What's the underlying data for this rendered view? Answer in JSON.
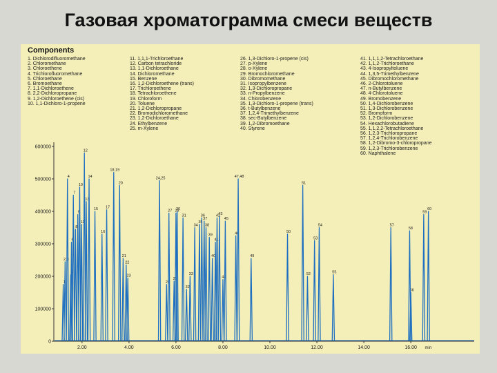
{
  "slide": {
    "title": "Газовая хроматограмма смеси веществ"
  },
  "components": {
    "heading": "Components",
    "columns": [
      [
        "1. Dichlorodifluoromethane",
        "2. Chloromethane",
        "3. Chloroethene",
        "4. Trichlorofluoromethane",
        "5. Chloroethane",
        "6. Bromoethane",
        "7. 1,1-Dichloroethene",
        "8. 2,2-Dichloropropane",
        "9. 1,2-Dichloroethene (cis)",
        "10. 1,1-Dichloro-1-propene"
      ],
      [
        "11. 1,1,1-Trichloroethane",
        "12. Carbon tetrachloride",
        "13. 1,1-Dichloroethane",
        "14. Dichloromethane",
        "15. Benzene",
        "16. 1,2-Dichloroethene (trans)",
        "17. Trichloroethene",
        "18. Tetrachloroethene",
        "19. Chloroform",
        "20. Toluene",
        "21. 1,2-Dichloropropane",
        "22. Bromodichloromethane",
        "23. 1,2-Dichloroethane",
        "24. Ethylbenzene",
        "25. m-Xylene"
      ],
      [
        "26. 1,3-Dichloro-1-propene (cis)",
        "27. p-Xylene",
        "28. o-Xylene",
        "29. Bromochloromethane",
        "30. Dibromomethane",
        "31. Isopropylbenzene",
        "32. 1,3-Dichloropropane",
        "33. n-Propylbenzene",
        "34. Chlorobenzene",
        "35. 1,3-Dichloro-1-propene (trans)",
        "36. t-Butylbenzene",
        "37. 1,2,4-Trimethylbenzene",
        "38. sec-Butylbenzene",
        "39. 1,2-Dibromoethane",
        "40. Styrene"
      ],
      [
        "41. 1,1,1,2-Tetrachloroethane",
        "42. 1,1,2-Trichloroethane",
        "43. 4-Isopropyltoluene",
        "44. 1,3,5-Trimethylbenzene",
        "45. Dibromochloromethane",
        "46. 2-Chlorotoluene",
        "47. n-Butylbenzene",
        "48. 4-Chlorotoluene",
        "49. Bromobenzene",
        "50. 1,4-Dichlorobenzene",
        "51. 1,3-Dichlorobenzene",
        "52. Bromoform",
        "53. 1,2-Dichlorobenzene",
        "54. Hexachlorobutadiene",
        "55. 1,1,2,2-Tetrachloroethane",
        "56. 1,2,3-Trichloropropane",
        "57. 1,2,4-Trichlorobenzene",
        "58. 1,2-Dibromo-3-chloropropane",
        "59. 1,2,3-Trichlorobenzene",
        "60. Naphthalene"
      ]
    ]
  },
  "chart_data": {
    "type": "line",
    "title": "",
    "xlabel": "min",
    "ylabel": "",
    "xlim": [
      0.8,
      18.7
    ],
    "ylim": [
      0,
      600000
    ],
    "x_ticks": [
      2.0,
      4.0,
      6.0,
      8.0,
      10.0,
      12.0,
      14.0,
      16.0
    ],
    "x_tick_labels": [
      "2.00",
      "4.00",
      "6.00",
      "8.00",
      "10.00",
      "12.00",
      "14.00",
      "16.00"
    ],
    "y_ticks": [
      0,
      100000,
      200000,
      300000,
      400000,
      500000,
      600000
    ],
    "y_tick_labels": [
      "0",
      "100000",
      "200000",
      "300000",
      "400000",
      "500000",
      "600000"
    ],
    "grid": false,
    "line_color": "#1e6fc0",
    "series": [
      {
        "peaks": [
          {
            "label": "1",
            "rt": 1.2,
            "height": 175000
          },
          {
            "label": "2,3",
            "rt": 1.28,
            "height": 245000
          },
          {
            "label": "4",
            "rt": 1.38,
            "height": 500000
          },
          {
            "label": "5",
            "rt": 1.52,
            "height": 205000
          },
          {
            "label": "6",
            "rt": 1.55,
            "height": 305000
          },
          {
            "label": "7",
            "rt": 1.63,
            "height": 450000
          },
          {
            "label": "8",
            "rt": 1.72,
            "height": 345000
          },
          {
            "label": "9",
            "rt": 1.82,
            "height": 390000
          },
          {
            "label": "10",
            "rt": 1.9,
            "height": 475000
          },
          {
            "label": "11",
            "rt": 1.98,
            "height": 360000
          },
          {
            "label": "12",
            "rt": 2.1,
            "height": 580000
          },
          {
            "label": "13",
            "rt": 2.18,
            "height": 430000
          },
          {
            "label": "14",
            "rt": 2.3,
            "height": 500000
          },
          {
            "label": "15",
            "rt": 2.55,
            "height": 400000
          },
          {
            "label": "16",
            "rt": 2.85,
            "height": 330000
          },
          {
            "label": "17",
            "rt": 3.05,
            "height": 405000
          },
          {
            "label": "18,19",
            "rt": 3.35,
            "height": 520000
          },
          {
            "label": "20",
            "rt": 3.6,
            "height": 480000
          },
          {
            "label": "21",
            "rt": 3.75,
            "height": 255000
          },
          {
            "label": "22",
            "rt": 3.88,
            "height": 235000
          },
          {
            "label": "23",
            "rt": 3.95,
            "height": 195000
          },
          {
            "label": "24,25",
            "rt": 5.3,
            "height": 495000
          },
          {
            "label": "26",
            "rt": 5.6,
            "height": 175000
          },
          {
            "label": "27",
            "rt": 5.7,
            "height": 395000
          },
          {
            "label": "28",
            "rt": 5.92,
            "height": 185000
          },
          {
            "label": "29",
            "rt": 6.0,
            "height": 395000
          },
          {
            "label": "30",
            "rt": 6.05,
            "height": 400000
          },
          {
            "label": "31",
            "rt": 6.3,
            "height": 380000
          },
          {
            "label": "32",
            "rt": 6.45,
            "height": 160000
          },
          {
            "label": "33",
            "rt": 6.6,
            "height": 200000
          },
          {
            "label": "34",
            "rt": 6.8,
            "height": 350000
          },
          {
            "label": "35",
            "rt": 7.0,
            "height": 360000
          },
          {
            "label": "36",
            "rt": 7.1,
            "height": 380000
          },
          {
            "label": "37",
            "rt": 7.2,
            "height": 370000
          },
          {
            "label": "38",
            "rt": 7.28,
            "height": 350000
          },
          {
            "label": "39",
            "rt": 7.42,
            "height": 320000
          },
          {
            "label": "40",
            "rt": 7.55,
            "height": 255000
          },
          {
            "label": "41",
            "rt": 7.68,
            "height": 305000
          },
          {
            "label": "42",
            "rt": 7.75,
            "height": 380000
          },
          {
            "label": "43",
            "rt": 7.85,
            "height": 385000
          },
          {
            "label": "44",
            "rt": 8.0,
            "height": 190000
          },
          {
            "label": "45",
            "rt": 8.1,
            "height": 370000
          },
          {
            "label": "46",
            "rt": 8.55,
            "height": 325000
          },
          {
            "label": "47,48",
            "rt": 8.65,
            "height": 500000
          },
          {
            "label": "49",
            "rt": 9.2,
            "height": 255000
          },
          {
            "label": "50",
            "rt": 10.75,
            "height": 330000
          },
          {
            "label": "51",
            "rt": 11.4,
            "height": 480000
          },
          {
            "label": "52",
            "rt": 11.6,
            "height": 200000
          },
          {
            "label": "53",
            "rt": 11.9,
            "height": 310000
          },
          {
            "label": "54",
            "rt": 12.1,
            "height": 350000
          },
          {
            "label": "55",
            "rt": 12.7,
            "height": 205000
          },
          {
            "label": "56",
            "rt": 16.0,
            "height": 150000
          },
          {
            "label": "57",
            "rt": 15.15,
            "height": 350000
          },
          {
            "label": "58",
            "rt": 15.95,
            "height": 340000
          },
          {
            "label": "59",
            "rt": 16.55,
            "height": 390000
          },
          {
            "label": "60",
            "rt": 16.75,
            "height": 400000
          }
        ]
      }
    ]
  }
}
